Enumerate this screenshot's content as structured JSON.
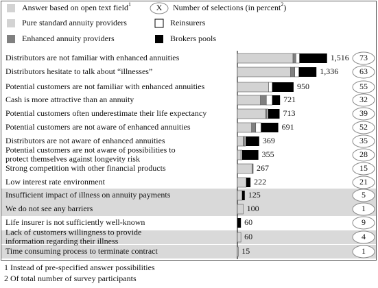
{
  "chart_data": {
    "type": "stacked-bar-horizontal",
    "legend": {
      "open_text": "Answer based on open text field",
      "open_text_note": "1",
      "marker": "X",
      "selections": "Number of selections (in percent",
      "selections_note": "2",
      "selections_close": ")"
    },
    "categories": [
      [
        "Distributors are not familiar with enhanced annuities"
      ],
      [
        "Distributors hesitate to talk about “illnesses”"
      ],
      [
        "Potential customers are not familiar with enhanced annuities"
      ],
      [
        "Cash is more attractive than an annuity"
      ],
      [
        "Potential customers often underestimate their life expectancy"
      ],
      [
        "Potential customers are not aware of enhanced annuities"
      ],
      [
        "Distributors are not aware of enhanced annuities"
      ],
      [
        "Potential customers are not aware of possibilities to",
        "protect themselves against longevity risk"
      ],
      [
        "Strong competition with other financial products"
      ],
      [
        "Low interest rate environment"
      ],
      [
        "Insufficient impact of illness on annuity payments"
      ],
      [
        "We do not see any barriers"
      ],
      [
        "Life insurer is not sufficiently well-known"
      ],
      [
        "Lack of customers willingness to provide",
        "information regarding their  illness"
      ],
      [
        "Time consuming process to terminate contract"
      ]
    ],
    "open_text": [
      false,
      false,
      false,
      false,
      false,
      false,
      false,
      false,
      false,
      false,
      true,
      true,
      false,
      true,
      true
    ],
    "series": [
      {
        "name": "Pure standard annuity providers",
        "color": "#d3d3d3",
        "values": [
          940,
          900,
          530,
          390,
          480,
          240,
          100,
          60,
          250,
          150,
          80,
          100,
          0,
          60,
          15
        ]
      },
      {
        "name": "Enhanced annuity providers",
        "color": "#808080",
        "values": [
          50,
          70,
          0,
          100,
          20,
          70,
          20,
          0,
          17,
          0,
          0,
          0,
          0,
          0,
          0
        ]
      },
      {
        "name": "Reinsurers",
        "color": "#ffffff",
        "values": [
          60,
          70,
          60,
          100,
          20,
          90,
          20,
          20,
          0,
          0,
          0,
          0,
          0,
          0,
          0
        ]
      },
      {
        "name": "Brokers pools",
        "color": "#000000",
        "values": [
          466,
          296,
          360,
          131,
          193,
          291,
          229,
          275,
          0,
          72,
          45,
          0,
          60,
          0,
          0
        ]
      }
    ],
    "totals": [
      1516,
      1336,
      950,
      721,
      713,
      691,
      369,
      355,
      267,
      222,
      125,
      100,
      60,
      60,
      15
    ],
    "value_labels": [
      "1,516",
      "1,336",
      "950",
      "721",
      "713",
      "691",
      "369",
      "355",
      "267",
      "222",
      "125",
      "100",
      "60",
      "60",
      "15"
    ],
    "percent": [
      73,
      63,
      55,
      32,
      39,
      52,
      35,
      28,
      15,
      21,
      5,
      1,
      9,
      4,
      1
    ],
    "xlim": [
      0,
      1600
    ],
    "notes": [
      "1 Instead of pre-specified answer possibilities",
      "2 Of total number of survey participants"
    ]
  }
}
